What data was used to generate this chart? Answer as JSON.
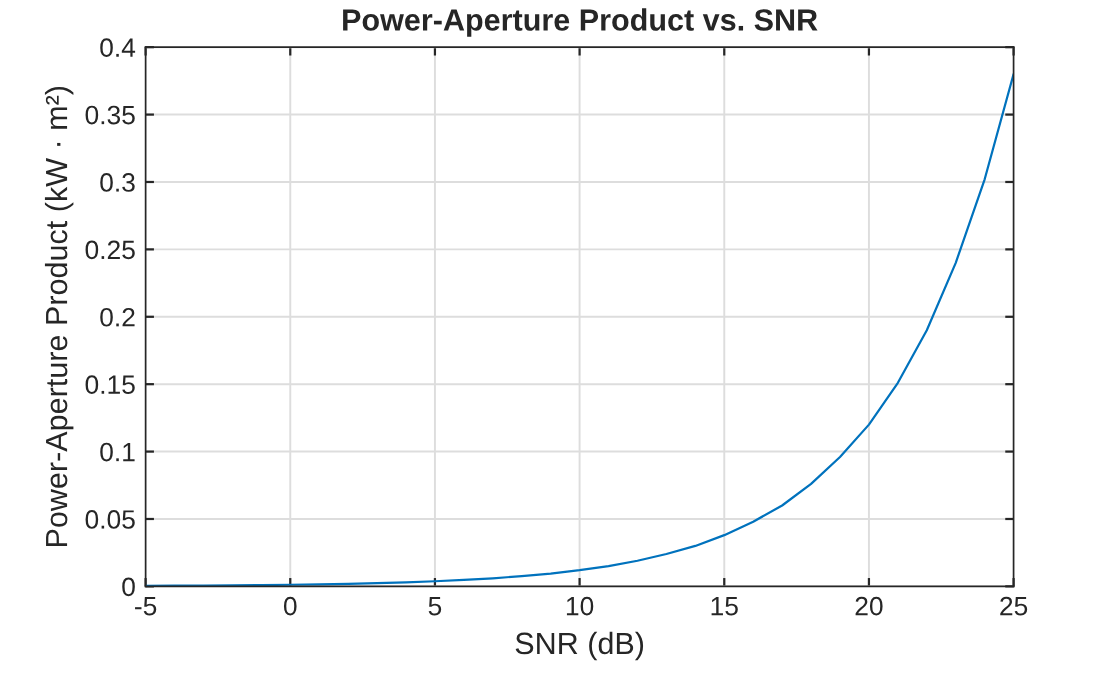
{
  "chart_data": {
    "type": "line",
    "title": "Power-Aperture Product vs. SNR",
    "xlabel": "SNR (dB)",
    "ylabel": "Power-Aperture Product (kW · m²)",
    "x": [
      -5,
      -4,
      -3,
      -2,
      -1,
      0,
      1,
      2,
      3,
      4,
      5,
      6,
      7,
      8,
      9,
      10,
      11,
      12,
      13,
      14,
      15,
      16,
      17,
      18,
      19,
      20,
      21,
      22,
      23,
      24,
      25
    ],
    "series": [
      {
        "color": "#0072bd",
        "values": [
          0.0004,
          0.0005,
          0.0006,
          0.0008,
          0.001,
          0.0012,
          0.0015,
          0.0019,
          0.0024,
          0.003,
          0.0038,
          0.0048,
          0.006,
          0.0076,
          0.0095,
          0.012,
          0.015,
          0.019,
          0.024,
          0.03,
          0.038,
          0.048,
          0.06,
          0.076,
          0.096,
          0.12,
          0.151,
          0.19,
          0.24,
          0.302,
          0.38
        ]
      }
    ],
    "xlim": [
      -5,
      25
    ],
    "ylim": [
      0,
      0.4
    ],
    "xticks": [
      -5,
      0,
      5,
      10,
      15,
      20,
      25
    ],
    "yticks": [
      0,
      0.05,
      0.1,
      0.15,
      0.2,
      0.25,
      0.3,
      0.35,
      0.4
    ],
    "grid": true,
    "line_style": "solid",
    "marker": "none"
  }
}
